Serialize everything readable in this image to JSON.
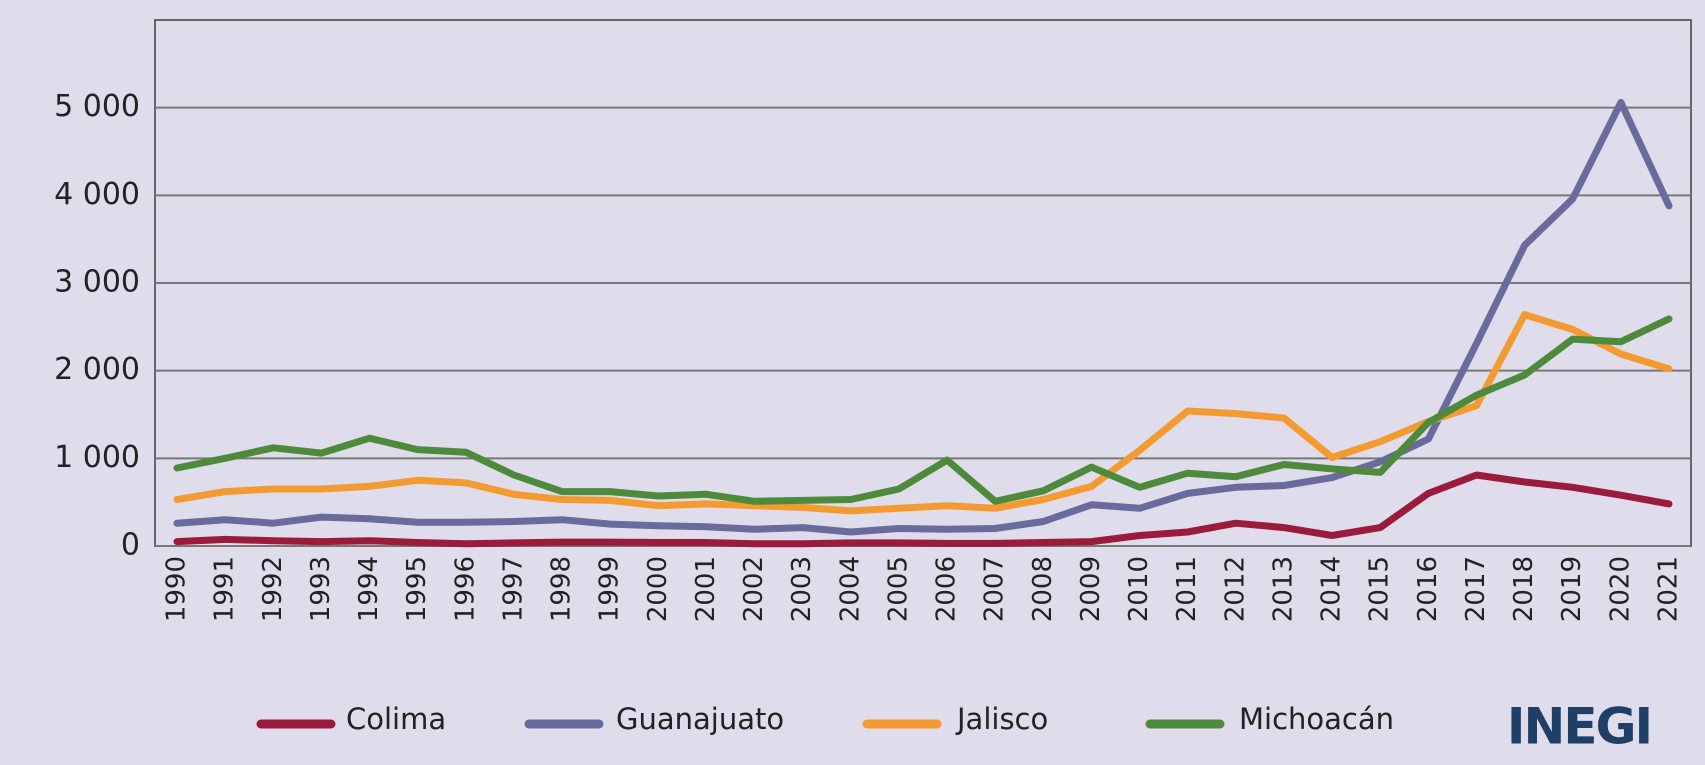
{
  "chart_data": {
    "type": "line",
    "categories": [
      "1990",
      "1991",
      "1992",
      "1993",
      "1994",
      "1995",
      "1996",
      "1997",
      "1998",
      "1999",
      "2000",
      "2001",
      "2002",
      "2003",
      "2004",
      "2005",
      "2006",
      "2007",
      "2008",
      "2009",
      "2010",
      "2011",
      "2012",
      "2013",
      "2014",
      "2015",
      "2016",
      "2017",
      "2018",
      "2019",
      "2020",
      "2021"
    ],
    "series": [
      {
        "name": "Colima",
        "color": "#9b1b3c",
        "values": [
          50,
          75,
          60,
          50,
          60,
          40,
          25,
          35,
          45,
          45,
          40,
          40,
          25,
          25,
          35,
          35,
          30,
          30,
          40,
          50,
          120,
          160,
          260,
          210,
          120,
          210,
          600,
          810,
          730,
          670,
          580,
          480
        ]
      },
      {
        "name": "Guanajuato",
        "color": "#6a6a9c",
        "values": [
          260,
          300,
          260,
          330,
          310,
          270,
          270,
          280,
          300,
          250,
          230,
          220,
          190,
          210,
          160,
          200,
          190,
          200,
          280,
          470,
          430,
          600,
          670,
          690,
          780,
          960,
          1220,
          2310,
          3430,
          3960,
          5060,
          3880
        ]
      },
      {
        "name": "Jalisco",
        "color": "#f39a30",
        "values": [
          530,
          620,
          650,
          650,
          680,
          750,
          720,
          590,
          530,
          520,
          460,
          480,
          460,
          440,
          400,
          430,
          460,
          430,
          530,
          680,
          1090,
          1540,
          1510,
          1460,
          1010,
          1190,
          1420,
          1600,
          2640,
          2470,
          2190,
          2020
        ]
      },
      {
        "name": "Michoacán",
        "color": "#4e8a3c",
        "values": [
          890,
          1000,
          1120,
          1060,
          1230,
          1100,
          1070,
          810,
          620,
          620,
          570,
          590,
          510,
          520,
          530,
          650,
          980,
          510,
          630,
          900,
          670,
          830,
          790,
          930,
          880,
          840,
          1410,
          1720,
          1950,
          2360,
          2330,
          2590
        ]
      }
    ],
    "ylim": [
      0,
      6000
    ],
    "yticks": [
      0,
      {
        "value": 1000,
        "label": "1 000"
      },
      {
        "value": 2000,
        "label": "2 000"
      },
      {
        "value": 3000,
        "label": "3 000"
      },
      {
        "value": 4000,
        "label": "4 000"
      },
      {
        "value": 5000,
        "label": "5 000"
      }
    ],
    "grid": true,
    "legend": "bottom",
    "logo": "INEGI"
  }
}
